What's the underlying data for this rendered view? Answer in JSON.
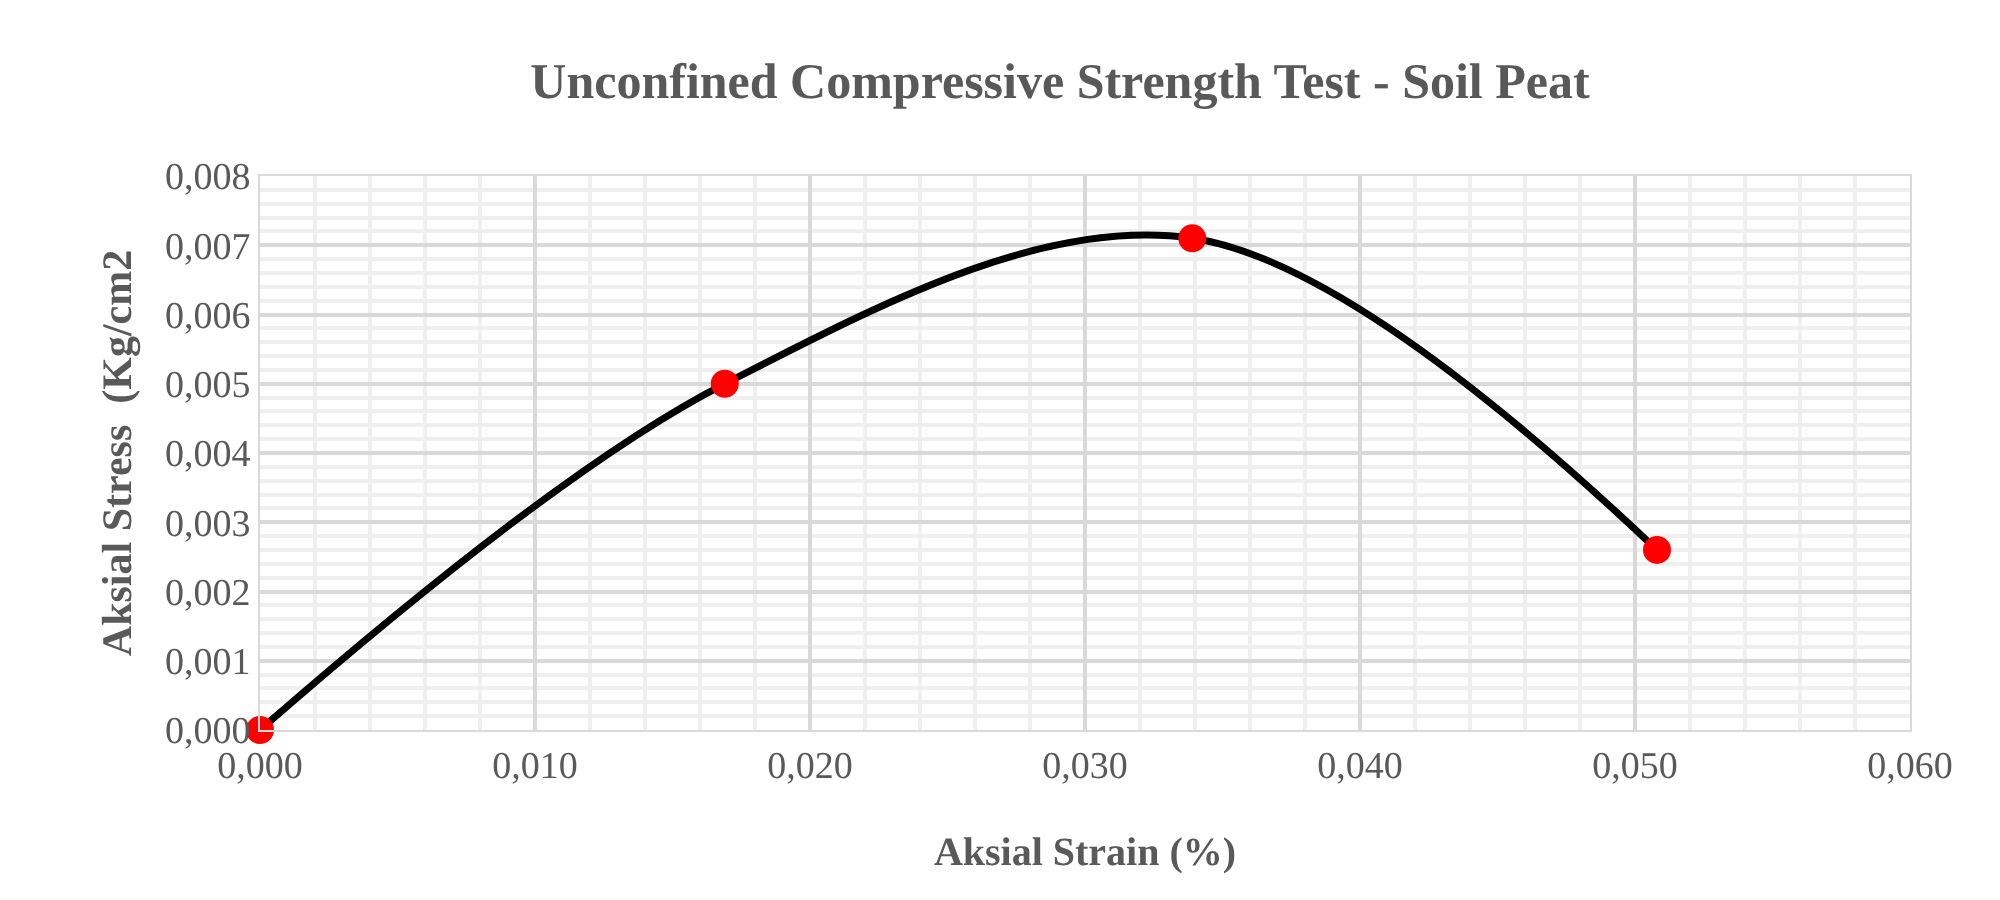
{
  "chart_data": {
    "type": "line",
    "title": "Unconfined Compressive Strength Test - Soil Peat",
    "xlabel": "Aksial Strain (%)",
    "ylabel": "Aksial Stress  (Kg/cm2",
    "x": [
      0.0,
      0.0169,
      0.0339,
      0.0508
    ],
    "series": [
      {
        "color": "#000000",
        "values": [
          0.0,
          0.005,
          0.0071,
          0.0026
        ],
        "marker": "none"
      },
      {
        "type": "scatter",
        "color": "#ff0000",
        "values": [
          0.0,
          0.005,
          0.0071,
          0.0026
        ],
        "marker": "circle"
      }
    ],
    "xlim": [
      0,
      0.06
    ],
    "ylim": [
      0,
      0.008
    ],
    "xticks": [
      {
        "value": 0,
        "label": "0,000"
      },
      {
        "value": 0.01,
        "label": "0,010"
      },
      {
        "value": 0.02,
        "label": "0,020"
      },
      {
        "value": 0.03,
        "label": "0,030"
      },
      {
        "value": 0.04,
        "label": "0,040"
      },
      {
        "value": 0.05,
        "label": "0,050"
      },
      {
        "value": 0.06,
        "label": "0,060"
      }
    ],
    "yticks": [
      {
        "value": 0,
        "label": "0,000"
      },
      {
        "value": 0.001,
        "label": "0,001"
      },
      {
        "value": 0.002,
        "label": "0,002"
      },
      {
        "value": 0.003,
        "label": "0,003"
      },
      {
        "value": 0.004,
        "label": "0,004"
      },
      {
        "value": 0.005,
        "label": "0,005"
      },
      {
        "value": 0.006,
        "label": "0,006"
      },
      {
        "value": 0.007,
        "label": "0,007"
      },
      {
        "value": 0.008,
        "label": "0,008"
      }
    ],
    "grid": true
  }
}
